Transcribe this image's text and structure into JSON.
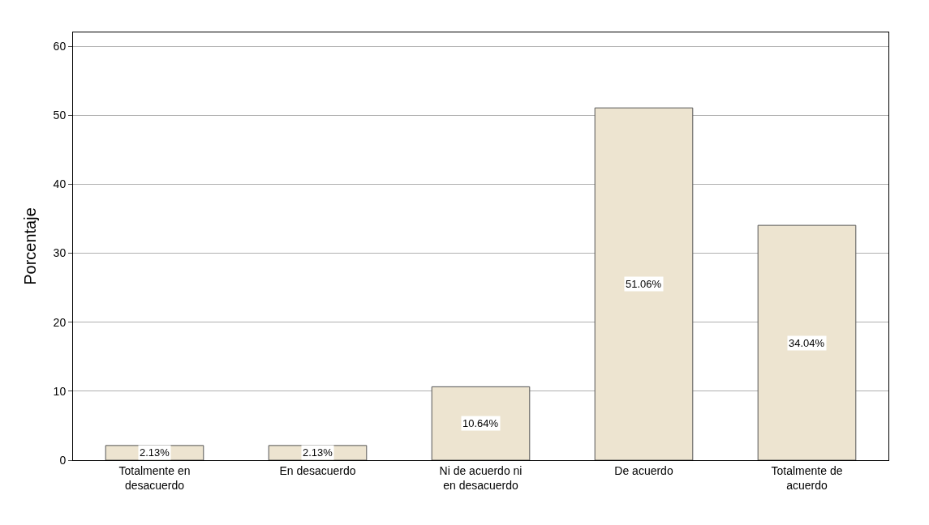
{
  "chart_data": {
    "type": "bar",
    "ylabel": "Porcentaje",
    "categories": [
      "Totalmente en\ndesacuerdo",
      "En desacuerdo",
      "Ni de acuerdo ni\nen desacuerdo",
      "De acuerdo",
      "Totalmente de\nacuerdo"
    ],
    "values": [
      2.13,
      2.13,
      10.64,
      51.06,
      34.04
    ],
    "value_labels": [
      "2.13%",
      "2.13%",
      "10.64%",
      "51.06%",
      "34.04%"
    ],
    "color": "#ede4d0",
    "ylim": [
      0,
      62
    ],
    "yticks": [
      0,
      10,
      20,
      30,
      40,
      50,
      60
    ],
    "grid": "y"
  }
}
